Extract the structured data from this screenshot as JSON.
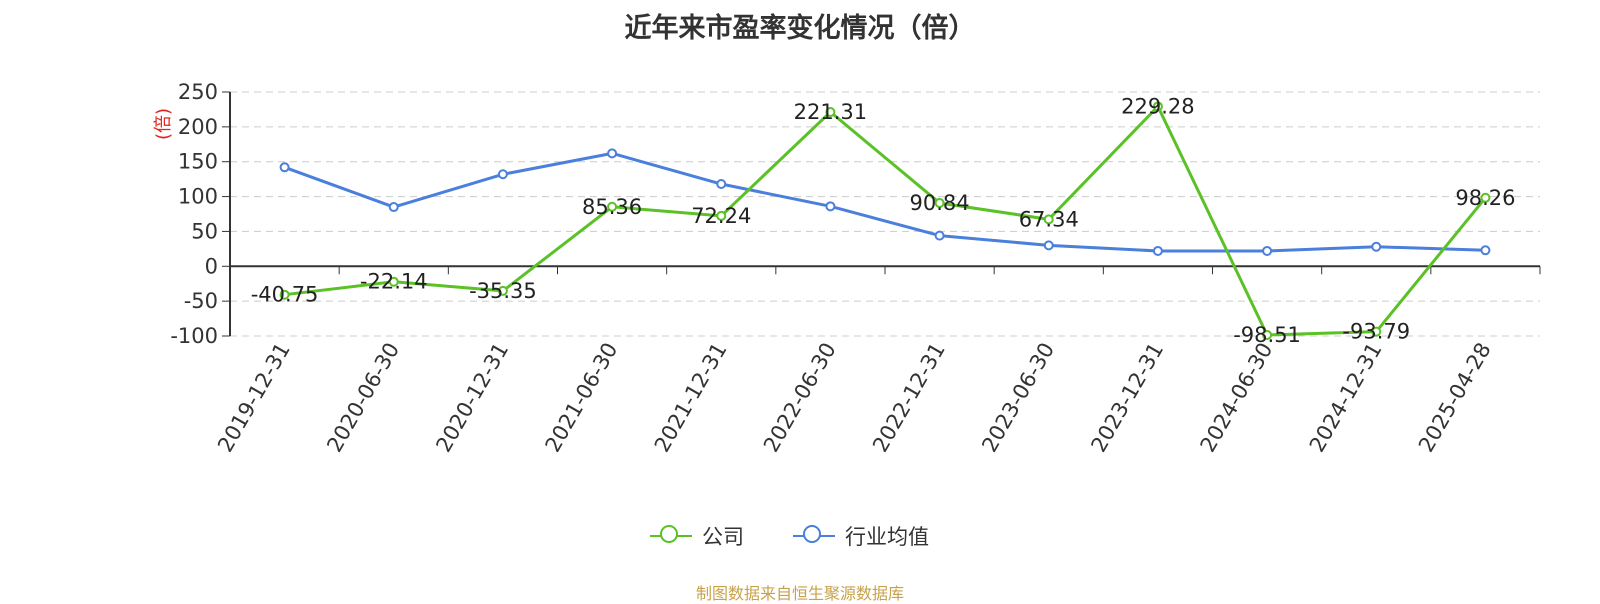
{
  "title": "近年来市盈率变化情况（倍）",
  "source": "制图数据来自恒生聚源数据库",
  "colors": {
    "company": "#5ac126",
    "industry": "#4a7fdb",
    "ylabel": "#e0261d",
    "grid": "#cccccc"
  },
  "legend": [
    {
      "label": "公司",
      "color": "#5ac126"
    },
    {
      "label": "行业均值",
      "color": "#4a7fdb"
    }
  ],
  "chart_data": {
    "type": "line",
    "title": "近年来市盈率变化情况（倍）",
    "xlabel": "",
    "ylabel": "(倍)",
    "ylim": [
      -100,
      250
    ],
    "yticks": [
      250,
      200,
      150,
      100,
      50,
      0,
      -50,
      -100
    ],
    "grid": true,
    "legend_position": "bottom",
    "categories": [
      "2019-12-31",
      "2020-06-30",
      "2020-12-31",
      "2021-06-30",
      "2021-12-31",
      "2022-06-30",
      "2022-12-31",
      "2023-06-30",
      "2023-12-31",
      "2024-06-30",
      "2024-12-31",
      "2025-04-28"
    ],
    "series": [
      {
        "name": "公司",
        "values": [
          -40.75,
          -22.14,
          -35.35,
          85.36,
          72.24,
          221.31,
          90.84,
          67.34,
          229.28,
          -98.51,
          -93.79,
          98.26
        ],
        "labels": [
          "-40.75",
          "-22.14",
          "-35.35",
          "85.36",
          "72.24",
          "221.31",
          "90.84",
          "67.34",
          "229.28",
          "-98.51",
          "-93.79",
          "98.26"
        ]
      },
      {
        "name": "行业均值",
        "values": [
          142,
          85,
          132,
          162,
          118,
          86,
          44,
          30,
          22,
          22,
          28,
          23
        ]
      }
    ]
  }
}
